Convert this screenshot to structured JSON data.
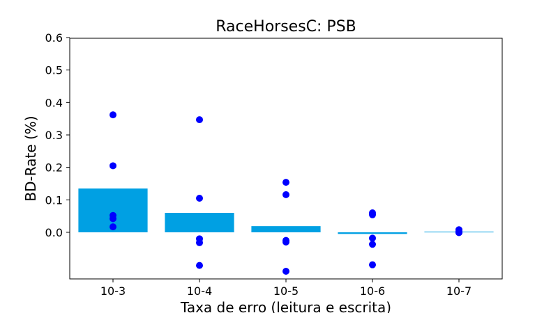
{
  "chart_data": {
    "type": "bar",
    "title": "RaceHorsesC: PSB",
    "xlabel": "Taxa de erro (leitura e escrita)",
    "ylabel": "BD-Rate (%)",
    "categories": [
      "10-3",
      "10-4",
      "10-5",
      "10-6",
      "10-7"
    ],
    "y_ticks": [
      "0.0",
      "0.1",
      "0.2",
      "0.3",
      "0.4",
      "0.5",
      "0.6"
    ],
    "ylim": [
      -0.145,
      0.6
    ],
    "grid": false,
    "legend": "none",
    "series": [
      {
        "kind": "bar",
        "values": [
          0.135,
          0.06,
          0.019,
          -0.005,
          0.001
        ]
      },
      {
        "kind": "scatter",
        "points": [
          [
            0.362,
            0.205,
            0.052,
            0.042,
            0.017
          ],
          [
            0.347,
            0.105,
            -0.02,
            -0.032,
            -0.102
          ],
          [
            0.154,
            0.116,
            -0.025,
            -0.03,
            -0.12
          ],
          [
            0.06,
            0.054,
            -0.018,
            -0.037,
            -0.1
          ],
          [
            0.008,
            0.003,
            0.0,
            -0.001
          ]
        ]
      }
    ],
    "colors": {
      "bar": "#00a0e3",
      "point": "#0000ff"
    }
  }
}
